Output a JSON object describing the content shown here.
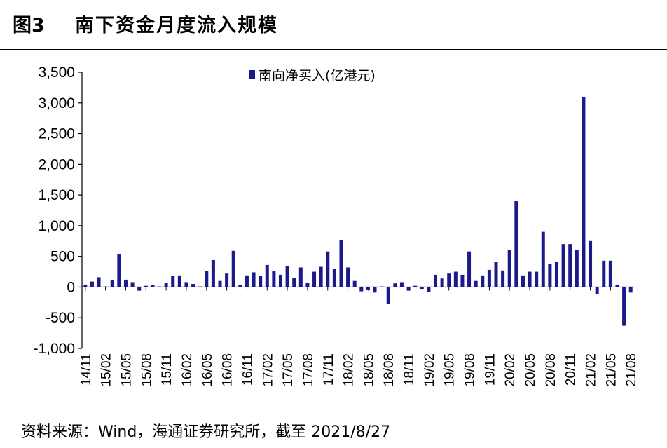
{
  "header": {
    "figure_number": "图3",
    "title": "南下资金月度流入规模"
  },
  "footer": {
    "source": "资料来源：Wind，海通证券研究所，截至 2021/8/27"
  },
  "chart_data": {
    "type": "bar",
    "title": "南下资金月度流入规模",
    "xlabel": "",
    "ylabel": "",
    "ylim": [
      -1000,
      3500
    ],
    "yticks": [
      -1000,
      -500,
      0,
      500,
      1000,
      1500,
      2000,
      2500,
      3000,
      3500
    ],
    "ytick_labels": [
      "-1,000",
      "-500",
      "0",
      "500",
      "1,000",
      "1,500",
      "2,000",
      "2,500",
      "3,000",
      "3,500"
    ],
    "grid": false,
    "legend_position": "top-center",
    "color": "#1a1a8c",
    "categories": [
      "14/11",
      "14/12",
      "15/01",
      "15/02",
      "15/03",
      "15/04",
      "15/05",
      "15/06",
      "15/07",
      "15/08",
      "15/09",
      "15/10",
      "15/11",
      "15/12",
      "16/01",
      "16/02",
      "16/03",
      "16/04",
      "16/05",
      "16/06",
      "16/07",
      "16/08",
      "16/09",
      "16/10",
      "16/11",
      "16/12",
      "17/01",
      "17/02",
      "17/03",
      "17/04",
      "17/05",
      "17/06",
      "17/07",
      "17/08",
      "17/09",
      "17/10",
      "17/11",
      "17/12",
      "18/01",
      "18/02",
      "18/03",
      "18/04",
      "18/05",
      "18/06",
      "18/07",
      "18/08",
      "18/09",
      "18/10",
      "18/11",
      "18/12",
      "19/01",
      "19/02",
      "19/03",
      "19/04",
      "19/05",
      "19/06",
      "19/07",
      "19/08",
      "19/09",
      "19/10",
      "19/11",
      "19/12",
      "20/01",
      "20/02",
      "20/03",
      "20/04",
      "20/05",
      "20/06",
      "20/07",
      "20/08",
      "20/09",
      "20/10",
      "20/11",
      "20/12",
      "21/01",
      "21/02",
      "21/03",
      "21/04",
      "21/05",
      "21/06",
      "21/07",
      "21/08"
    ],
    "tick_labels": [
      "14/11",
      "15/02",
      "15/05",
      "15/08",
      "15/11",
      "16/02",
      "16/05",
      "16/08",
      "16/11",
      "17/02",
      "17/05",
      "17/08",
      "17/11",
      "18/02",
      "18/05",
      "18/08",
      "18/11",
      "19/02",
      "19/05",
      "19/08",
      "19/11",
      "20/02",
      "20/05",
      "20/08",
      "20/11",
      "21/02",
      "21/05",
      "21/08"
    ],
    "series": [
      {
        "name": "南向净买入(亿港元)",
        "values": [
          40,
          90,
          160,
          10,
          110,
          530,
          120,
          80,
          -60,
          20,
          30,
          10,
          70,
          180,
          190,
          80,
          50,
          10,
          260,
          440,
          100,
          220,
          590,
          30,
          190,
          240,
          180,
          360,
          260,
          200,
          340,
          150,
          320,
          70,
          250,
          330,
          580,
          300,
          760,
          320,
          100,
          -70,
          -50,
          -90,
          10,
          -270,
          60,
          80,
          -60,
          20,
          -30,
          -80,
          200,
          140,
          220,
          250,
          200,
          580,
          100,
          190,
          280,
          410,
          270,
          610,
          1400,
          190,
          250,
          250,
          900,
          380,
          410,
          700,
          700,
          600,
          3100,
          750,
          -110,
          430,
          430,
          40,
          -630,
          -90
        ]
      }
    ]
  }
}
